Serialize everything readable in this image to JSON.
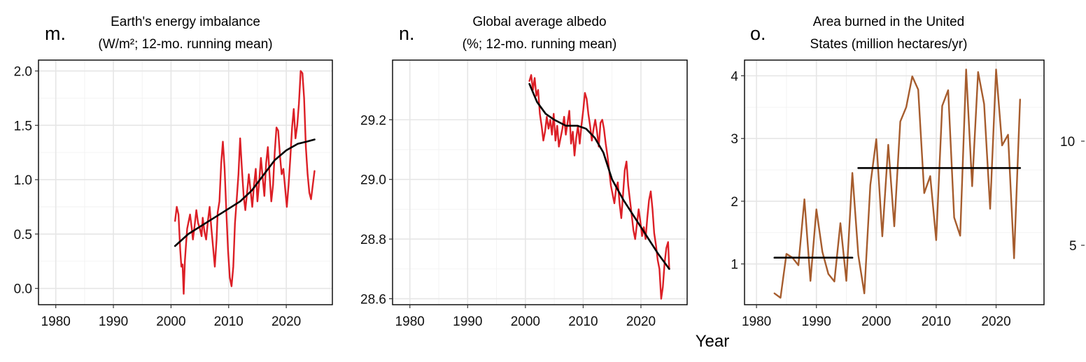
{
  "x_axis_label": "Year",
  "edge_fragment": {
    "ticks": [
      "10",
      "5"
    ]
  },
  "chart_data": [
    {
      "type": "line",
      "panel_letter": "m.",
      "title_lines": [
        "Earth's energy imbalance",
        "(W/m²; 12-mo. running mean)"
      ],
      "xlim": [
        1977,
        2028
      ],
      "ylim": [
        -0.15,
        2.1
      ],
      "x_ticks": [
        1980,
        1990,
        2000,
        2010,
        2020
      ],
      "y_ticks": [
        0.0,
        0.5,
        1.0,
        1.5,
        2.0
      ],
      "y_tick_labels": [
        "0.0",
        "0.5",
        "1.0",
        "1.5",
        "2.0"
      ],
      "grid": true,
      "series": [
        {
          "color": "#dc1f26",
          "x": [
            2000.7,
            2001.0,
            2001.3,
            2001.6,
            2001.8,
            2002.0,
            2002.2,
            2002.4,
            2002.6,
            2002.8,
            2003.0,
            2003.3,
            2003.6,
            2003.8,
            2004.1,
            2004.4,
            2004.7,
            2005.0,
            2005.3,
            2005.5,
            2005.8,
            2006.1,
            2006.4,
            2006.7,
            2007.0,
            2007.3,
            2007.6,
            2007.9,
            2008.1,
            2008.4,
            2008.7,
            2009.0,
            2009.3,
            2009.6,
            2009.9,
            2010.2,
            2010.5,
            2010.8,
            2011.1,
            2011.4,
            2011.7,
            2012.0,
            2012.3,
            2012.6,
            2012.9,
            2013.2,
            2013.5,
            2013.8,
            2014.1,
            2014.4,
            2014.7,
            2015.0,
            2015.3,
            2015.6,
            2015.9,
            2016.2,
            2016.5,
            2016.8,
            2017.1,
            2017.4,
            2017.7,
            2018.0,
            2018.3,
            2018.6,
            2018.9,
            2019.2,
            2019.5,
            2019.8,
            2020.1,
            2020.4,
            2020.7,
            2021.0,
            2021.3,
            2021.6,
            2021.9,
            2022.2,
            2022.5,
            2022.8,
            2023.1,
            2023.4,
            2023.7,
            2024.0,
            2024.3,
            2024.6,
            2024.9
          ],
          "y": [
            0.62,
            0.75,
            0.68,
            0.35,
            0.2,
            0.22,
            -0.05,
            0.25,
            0.4,
            0.55,
            0.6,
            0.68,
            0.55,
            0.45,
            0.58,
            0.72,
            0.6,
            0.55,
            0.48,
            0.65,
            0.52,
            0.45,
            0.62,
            0.75,
            0.55,
            0.38,
            0.2,
            0.45,
            0.7,
            0.8,
            1.15,
            1.35,
            1.1,
            0.7,
            0.35,
            0.1,
            0.02,
            0.2,
            0.6,
            0.82,
            1.05,
            1.38,
            1.1,
            0.85,
            0.72,
            0.88,
            1.05,
            0.9,
            0.75,
            0.95,
            1.1,
            0.8,
            0.98,
            1.2,
            1.02,
            0.85,
            1.15,
            1.3,
            1.05,
            0.8,
            0.95,
            1.25,
            1.48,
            1.45,
            1.22,
            1.05,
            1.1,
            0.92,
            0.75,
            0.95,
            1.2,
            1.48,
            1.65,
            1.38,
            1.5,
            1.7,
            2.0,
            1.98,
            1.75,
            1.3,
            1.05,
            0.88,
            0.82,
            0.95,
            1.08
          ]
        },
        {
          "color": "#000000",
          "x": [
            2000.7,
            2003,
            2006,
            2009,
            2012,
            2014,
            2016,
            2018,
            2020,
            2022,
            2023.5,
            2024.9
          ],
          "y": [
            0.39,
            0.5,
            0.6,
            0.7,
            0.8,
            0.9,
            1.04,
            1.18,
            1.27,
            1.33,
            1.35,
            1.37
          ]
        }
      ]
    },
    {
      "type": "line",
      "panel_letter": "n.",
      "title_lines": [
        "Global average albedo",
        "(%; 12-mo. running mean)"
      ],
      "xlim": [
        1977,
        2028
      ],
      "ylim": [
        28.58,
        29.4
      ],
      "x_ticks": [
        1980,
        1990,
        2000,
        2010,
        2020
      ],
      "y_ticks": [
        28.6,
        28.8,
        29.0,
        29.2
      ],
      "y_tick_labels": [
        "28.6",
        "28.8",
        "29.0",
        "29.2"
      ],
      "grid": true,
      "series": [
        {
          "color": "#dc1f26",
          "x": [
            2000.7,
            2001.0,
            2001.3,
            2001.6,
            2001.9,
            2002.2,
            2002.5,
            2002.8,
            2003.1,
            2003.4,
            2003.7,
            2004.0,
            2004.3,
            2004.6,
            2004.9,
            2005.2,
            2005.5,
            2005.8,
            2006.1,
            2006.4,
            2006.7,
            2007.0,
            2007.3,
            2007.6,
            2007.9,
            2008.2,
            2008.5,
            2008.8,
            2009.1,
            2009.4,
            2009.7,
            2010.0,
            2010.3,
            2010.6,
            2010.9,
            2011.2,
            2011.5,
            2011.8,
            2012.1,
            2012.4,
            2012.7,
            2013.0,
            2013.3,
            2013.6,
            2013.9,
            2014.2,
            2014.5,
            2014.8,
            2015.1,
            2015.4,
            2015.7,
            2016.0,
            2016.3,
            2016.6,
            2016.9,
            2017.2,
            2017.5,
            2017.8,
            2018.1,
            2018.4,
            2018.7,
            2019.0,
            2019.3,
            2019.6,
            2019.9,
            2020.2,
            2020.5,
            2020.8,
            2021.1,
            2021.4,
            2021.7,
            2022.0,
            2022.3,
            2022.6,
            2022.9,
            2023.2,
            2023.5,
            2023.8,
            2024.1,
            2024.4,
            2024.7,
            2024.9
          ],
          "y": [
            29.33,
            29.35,
            29.3,
            29.34,
            29.28,
            29.3,
            29.22,
            29.18,
            29.13,
            29.16,
            29.21,
            29.17,
            29.2,
            29.15,
            29.22,
            29.13,
            29.18,
            29.11,
            29.14,
            29.17,
            29.21,
            29.15,
            29.19,
            29.23,
            29.12,
            29.16,
            29.08,
            29.14,
            29.18,
            29.12,
            29.18,
            29.23,
            29.29,
            29.27,
            29.22,
            29.18,
            29.13,
            29.17,
            29.2,
            29.16,
            29.11,
            29.19,
            29.2,
            29.17,
            29.12,
            29.08,
            29.03,
            28.98,
            28.95,
            28.92,
            28.97,
            28.99,
            28.92,
            28.87,
            28.95,
            29.03,
            29.06,
            28.98,
            28.93,
            28.88,
            28.83,
            28.8,
            28.85,
            28.9,
            28.86,
            28.81,
            28.84,
            28.8,
            28.87,
            28.93,
            28.96,
            28.9,
            28.82,
            28.78,
            28.73,
            28.7,
            28.6,
            28.64,
            28.72,
            28.77,
            28.79,
            28.7
          ]
        },
        {
          "color": "#000000",
          "x": [
            2000.7,
            2002,
            2003.5,
            2005,
            2007,
            2009,
            2010.5,
            2012,
            2013.5,
            2015,
            2017,
            2019,
            2021,
            2023,
            2024.9
          ],
          "y": [
            29.32,
            29.26,
            29.22,
            29.2,
            29.18,
            29.18,
            29.17,
            29.14,
            29.09,
            29.0,
            28.93,
            28.87,
            28.81,
            28.75,
            28.7
          ]
        }
      ]
    },
    {
      "type": "line",
      "panel_letter": "o.",
      "title_lines": [
        "Area burned in the United",
        "States (million hectares/yr)"
      ],
      "xlim": [
        1978,
        2028
      ],
      "ylim": [
        0.35,
        4.25
      ],
      "x_ticks": [
        1980,
        1990,
        2000,
        2010,
        2020
      ],
      "y_ticks": [
        1,
        2,
        3,
        4
      ],
      "y_tick_labels": [
        "1",
        "2",
        "3",
        "4"
      ],
      "grid": true,
      "series": [
        {
          "color": "#a65c2d",
          "x": [
            1983,
            1984,
            1985,
            1986,
            1987,
            1988,
            1989,
            1990,
            1991,
            1992,
            1993,
            1994,
            1995,
            1996,
            1997,
            1998,
            1999,
            2000,
            2001,
            2002,
            2003,
            2004,
            2005,
            2006,
            2007,
            2008,
            2009,
            2010,
            2011,
            2012,
            2013,
            2014,
            2015,
            2016,
            2017,
            2018,
            2019,
            2020,
            2021,
            2022,
            2023,
            2024
          ],
          "y": [
            0.53,
            0.46,
            1.16,
            1.1,
            0.98,
            2.03,
            0.73,
            1.87,
            1.19,
            0.84,
            0.72,
            1.65,
            0.73,
            2.45,
            1.14,
            0.53,
            2.26,
            2.99,
            1.44,
            2.9,
            1.6,
            3.27,
            3.5,
            3.99,
            3.78,
            2.13,
            2.4,
            1.38,
            3.52,
            3.77,
            1.74,
            1.45,
            4.1,
            2.24,
            4.06,
            3.55,
            1.88,
            4.1,
            2.89,
            3.06,
            1.09,
            3.62
          ]
        },
        {
          "color": "#000000",
          "x": [
            1983,
            1996
          ],
          "y": [
            1.1,
            1.1
          ]
        },
        {
          "color": "#000000",
          "x": [
            1997,
            2024
          ],
          "y": [
            2.53,
            2.53
          ]
        }
      ]
    }
  ]
}
